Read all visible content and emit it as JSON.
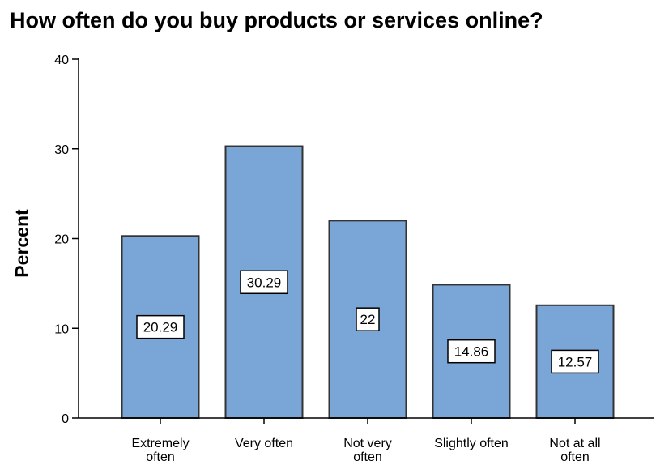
{
  "chart_data": {
    "type": "bar",
    "title": "How often do you buy products or services online?",
    "xlabel": "",
    "ylabel": "Percent",
    "categories": [
      [
        "Extremely",
        "often"
      ],
      [
        "Very often"
      ],
      [
        "Not very",
        "often"
      ],
      [
        "Slightly often"
      ],
      [
        "Not at all",
        "often"
      ]
    ],
    "values": [
      20.29,
      30.29,
      22,
      14.86,
      12.57
    ],
    "value_labels": [
      "20.29",
      "30.29",
      "22",
      "14.86",
      "12.57"
    ],
    "ylim": [
      0,
      40
    ],
    "yticks": [
      0,
      10,
      20,
      30,
      40
    ],
    "grid": false,
    "legend": "none",
    "bar_color": "#79a6d6",
    "bar_edge_color": "#333333"
  }
}
